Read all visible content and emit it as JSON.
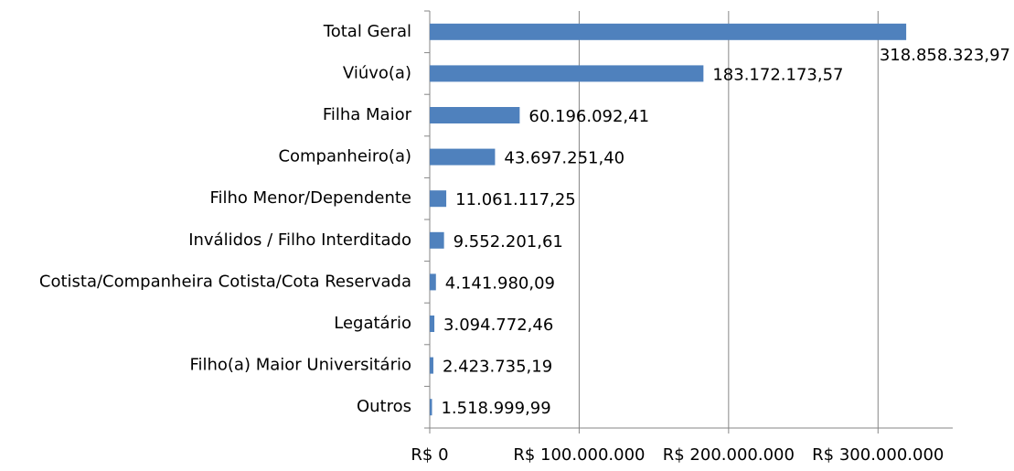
{
  "chart_data": {
    "type": "bar",
    "orientation": "horizontal",
    "categories": [
      "Total Geral",
      "Viúvo(a)",
      "Filha Maior",
      "Companheiro(a)",
      "Filho Menor/Dependente",
      "Inválidos / Filho Interditado",
      "Cotista/Companheira Cotista/Cota Reservada",
      "Legatário",
      "Filho(a) Maior Universitário",
      "Outros"
    ],
    "values": [
      318858323.97,
      183172173.57,
      60196092.41,
      43697251.4,
      11061117.25,
      9552201.61,
      4141980.09,
      3094772.46,
      2423735.19,
      1518999.99
    ],
    "value_labels": [
      "318.858.323,97",
      "183.172.173,57",
      "60.196.092,41",
      "43.697.251,40",
      "11.061.117,25",
      "9.552.201,61",
      "4.141.980,09",
      "3.094.772,46",
      "2.423.735,19",
      "1.518.999,99"
    ],
    "color": "#4f81bd",
    "xlim": [
      0,
      350000000
    ],
    "xticks": [
      {
        "value": 0,
        "label": "R$ 0"
      },
      {
        "value": 100000000,
        "label": "R$ 100.000.000"
      },
      {
        "value": 200000000,
        "label": "R$ 200.000.000"
      },
      {
        "value": 300000000,
        "label": "R$ 300.000.000"
      }
    ],
    "grid": true
  }
}
